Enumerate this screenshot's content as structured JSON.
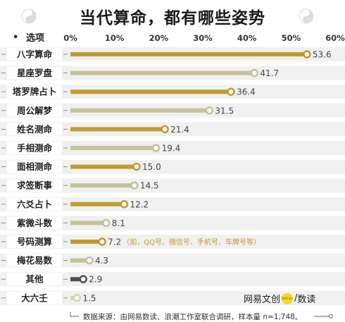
{
  "header": {
    "title": "当代算命，都有哪些姿势"
  },
  "footer": {
    "source": "数据来源：由网易数读、浪潮工作室联合调研，样本量 n=1,748。",
    "logo_left": "网易文创",
    "logo_dot": "NetEase",
    "logo_right": "数读"
  },
  "colors": {
    "gold": "#bf9b30",
    "sage": "#c4c29a",
    "dark": "#4f4f4f",
    "light": "#d6d4b4",
    "row_bg": "#f0f0f0"
  },
  "chart_data": {
    "type": "bar",
    "orientation": "horizontal",
    "title": "当代算命，都有哪些姿势",
    "category_header": "选项",
    "categories": [
      "八字算命",
      "星座罗盘",
      "塔罗牌占卜",
      "周公解梦",
      "姓名测命",
      "手相测命",
      "面相测命",
      "求签断事",
      "六爻占卜",
      "紫微斗数",
      "号码测算",
      "梅花易数",
      "其他",
      "大六壬"
    ],
    "values": [
      53.6,
      41.7,
      36.4,
      31.5,
      21.4,
      19.4,
      15.0,
      14.5,
      12.2,
      8.1,
      7.2,
      4.3,
      2.9,
      1.5
    ],
    "value_labels": [
      "53.6",
      "41.7",
      "36.4",
      "31.5",
      "21.4",
      "19.4",
      "15.0",
      "14.5",
      "12.2",
      "8.1",
      "7.2",
      "4.3",
      "2.9",
      "1.5"
    ],
    "color_keys": [
      "gold",
      "sage",
      "gold",
      "sage",
      "gold",
      "sage",
      "gold",
      "sage",
      "gold",
      "sage",
      "gold",
      "sage",
      "dark",
      "light"
    ],
    "annotations": [
      "",
      "",
      "",
      "",
      "",
      "",
      "",
      "",
      "",
      "",
      "（如，QQ号、微信号、手机号、车牌号等）",
      "",
      "",
      ""
    ],
    "xticks": [
      "0%",
      "10%",
      "20%",
      "30%",
      "40%",
      "50%",
      "60%"
    ],
    "xlim": [
      0,
      60
    ],
    "grid": false,
    "legend": "none"
  }
}
